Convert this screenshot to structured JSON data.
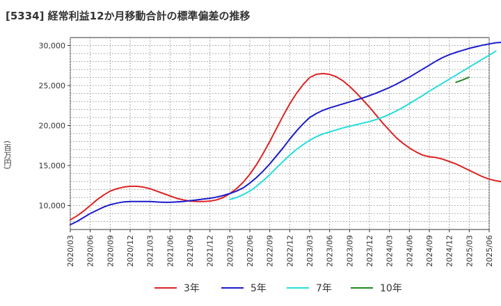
{
  "title": "[5334]  経常利益12か月移動合計の標準偏差の推移",
  "chart_data": {
    "type": "line",
    "title": "[5334]  経常利益12か月移動合計の標準偏差の推移",
    "ylabel": "(百万円)",
    "xlabel": "",
    "ylim": [
      7000,
      31000
    ],
    "yticks": [
      10000,
      15000,
      20000,
      25000,
      30000
    ],
    "ytick_labels": [
      "10,000",
      "15,000",
      "20,000",
      "25,000",
      "30,000"
    ],
    "xticks": [
      "2020/03",
      "2020/06",
      "2020/09",
      "2020/12",
      "2021/03",
      "2021/06",
      "2021/09",
      "2021/12",
      "2022/03",
      "2022/06",
      "2022/09",
      "2022/12",
      "2023/03",
      "2023/06",
      "2023/09",
      "2023/12",
      "2024/03",
      "2024/06",
      "2024/09",
      "2024/12",
      "2025/03",
      "2025/06"
    ],
    "grid": true,
    "legend_position": "bottom",
    "series": [
      {
        "name": "3年",
        "color": "#dd2222",
        "start": "2020/03",
        "values": [
          8200,
          8700,
          9300,
          10000,
          10700,
          11300,
          11800,
          12100,
          12300,
          12400,
          12400,
          12300,
          12100,
          11800,
          11500,
          11200,
          10900,
          10700,
          10550,
          10500,
          10500,
          10550,
          10700,
          11000,
          11500,
          12100,
          12900,
          13900,
          15100,
          16500,
          18000,
          19600,
          21200,
          22700,
          24000,
          25100,
          26000,
          26400,
          26500,
          26400,
          26100,
          25600,
          24900,
          24100,
          23200,
          22300,
          21300,
          20300,
          19400,
          18500,
          17800,
          17200,
          16700,
          16300,
          16100,
          16000,
          15800,
          15500,
          15200,
          14800,
          14400,
          14000,
          13600,
          13300,
          13100,
          12950
        ]
      },
      {
        "name": "5年",
        "color": "#1a1acc",
        "start": "2020/03",
        "values": [
          7600,
          8000,
          8500,
          9000,
          9400,
          9800,
          10100,
          10300,
          10450,
          10500,
          10500,
          10500,
          10500,
          10450,
          10400,
          10400,
          10450,
          10500,
          10600,
          10700,
          10800,
          10900,
          11050,
          11250,
          11500,
          11800,
          12200,
          12800,
          13500,
          14300,
          15200,
          16200,
          17200,
          18300,
          19300,
          20200,
          21000,
          21500,
          21900,
          22200,
          22450,
          22700,
          22950,
          23200,
          23450,
          23750,
          24050,
          24400,
          24750,
          25150,
          25600,
          26050,
          26550,
          27050,
          27550,
          28050,
          28500,
          28850,
          29150,
          29400,
          29650,
          29850,
          30050,
          30200,
          30350,
          30400
        ]
      },
      {
        "name": "7年",
        "color": "#22dddd",
        "start": "2022/03",
        "values": [
          10750,
          11000,
          11350,
          11800,
          12400,
          13100,
          13850,
          14700,
          15500,
          16300,
          17000,
          17600,
          18150,
          18600,
          18950,
          19200,
          19450,
          19700,
          19900,
          20100,
          20300,
          20500,
          20750,
          21050,
          21400,
          21800,
          22250,
          22750,
          23250,
          23750,
          24300,
          24800,
          25300,
          25800,
          26300,
          26800,
          27300,
          27800,
          28300,
          28800,
          29300
        ]
      },
      {
        "name": "10年",
        "color": "#228822",
        "start": "2025/01",
        "values": [
          25400,
          25700,
          26050
        ]
      }
    ]
  }
}
